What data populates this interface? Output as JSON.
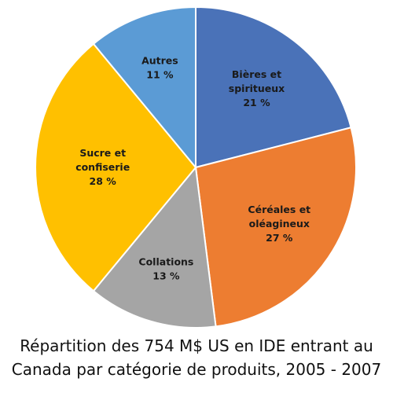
{
  "chart_data": {
    "type": "pie",
    "start_angle_deg": 0,
    "direction": "clockwise",
    "slices": [
      {
        "label_lines": [
          "Bières et",
          "spiritueux"
        ],
        "value": 21,
        "value_label": "21 %",
        "color": "#4A72B8"
      },
      {
        "label_lines": [
          "Céréales et",
          "oléagineux"
        ],
        "value": 27,
        "value_label": "27 %",
        "color": "#ED7D31"
      },
      {
        "label_lines": [
          "Collations"
        ],
        "value": 13,
        "value_label": "13 %",
        "color": "#A5A5A5"
      },
      {
        "label_lines": [
          "Sucre et",
          "confiserie"
        ],
        "value": 28,
        "value_label": "28 %",
        "color": "#FFC000"
      },
      {
        "label_lines": [
          "Autres"
        ],
        "value": 11,
        "value_label": "11 %",
        "color": "#5B9BD5"
      }
    ],
    "title_lines": [
      "Répartition des 754 M$ US en IDE entrant au",
      "Canada par catégorie de produits, 2005 - 2007"
    ]
  }
}
